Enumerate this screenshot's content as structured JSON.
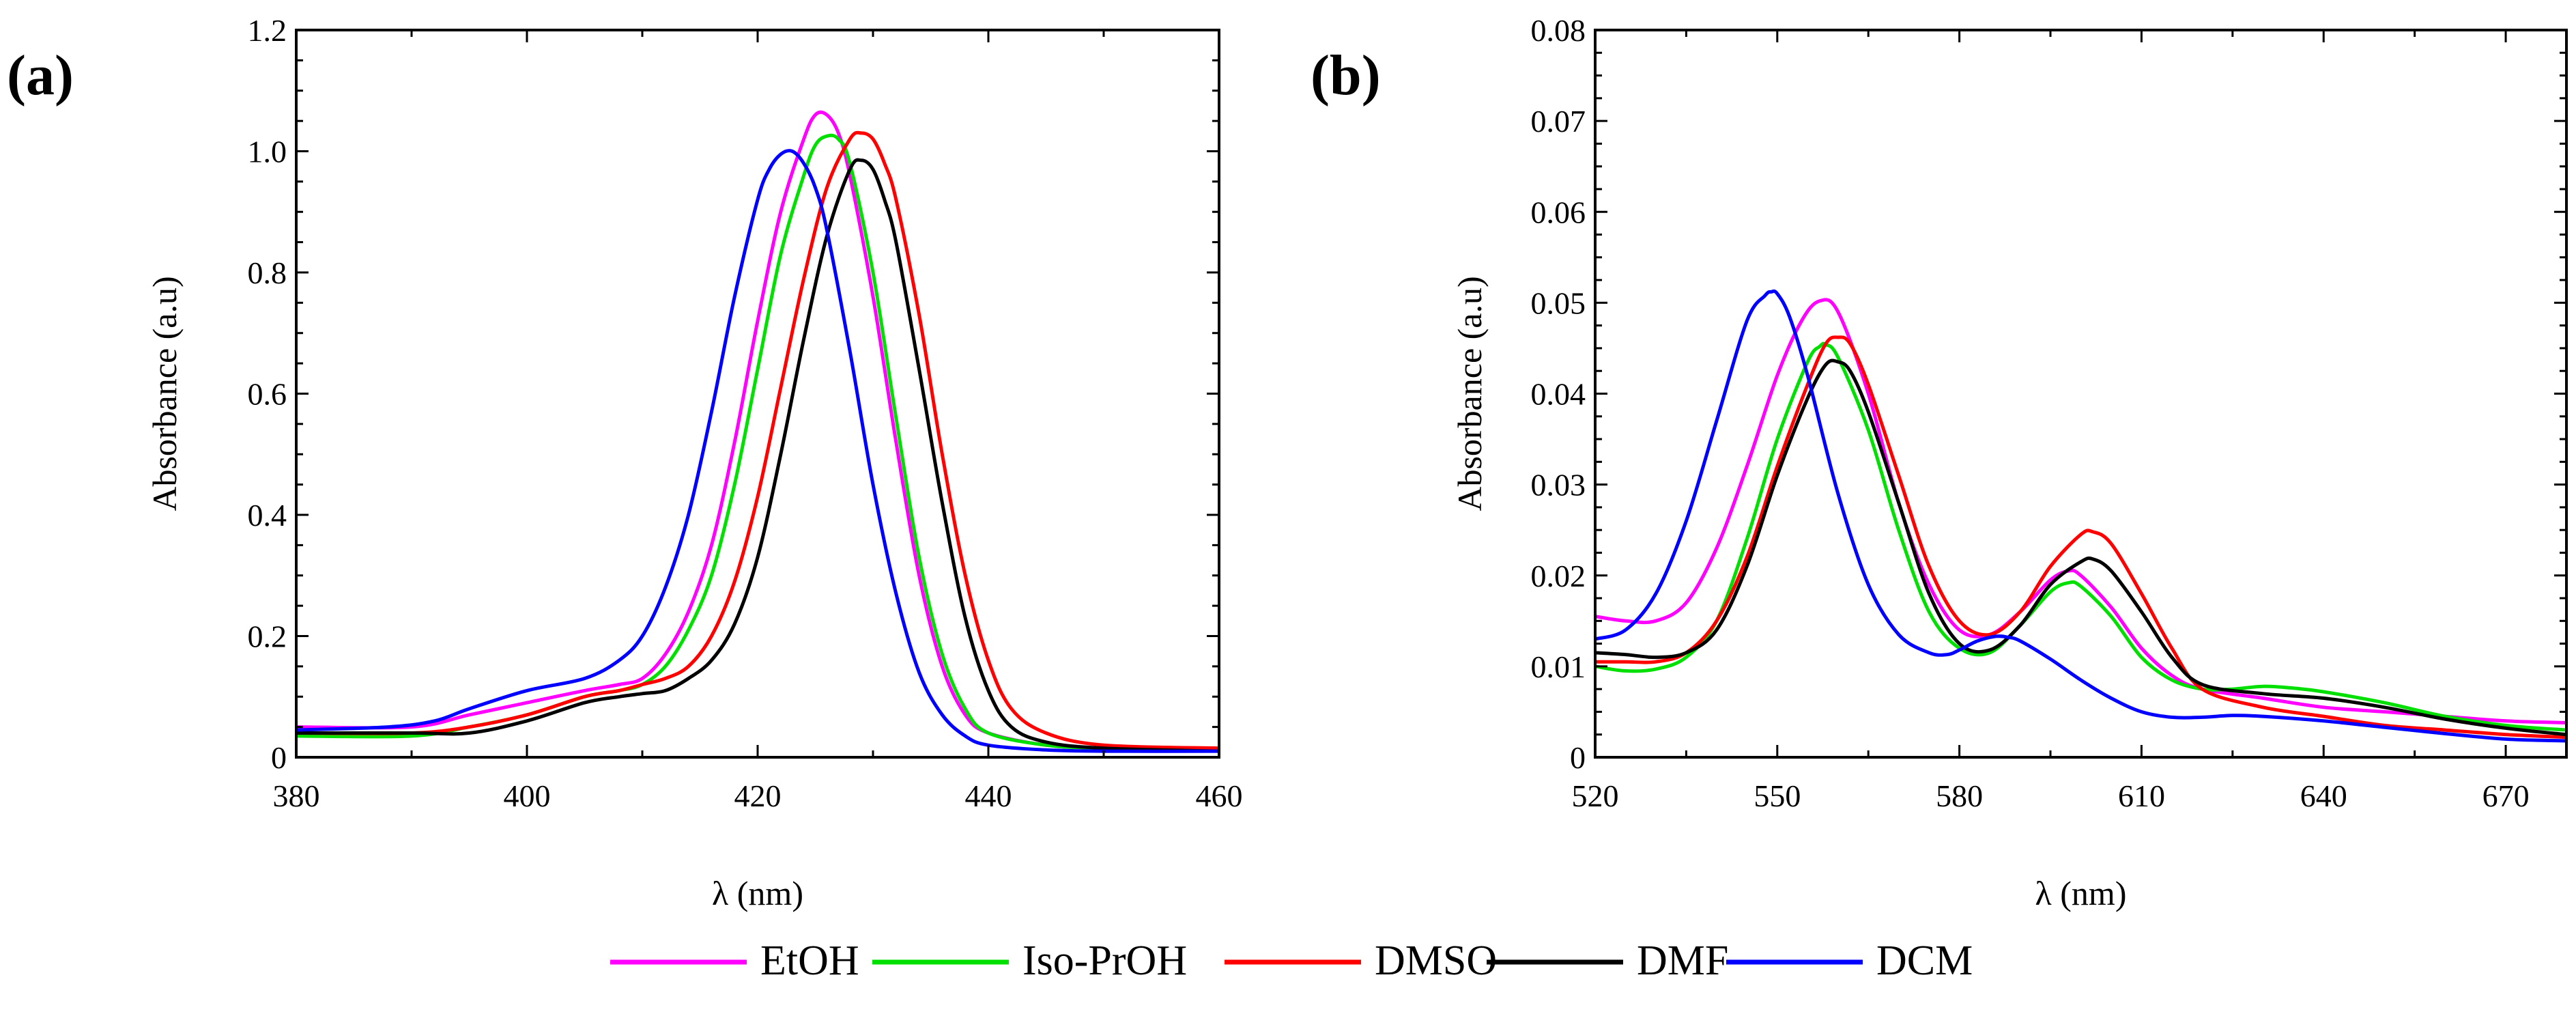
{
  "legend": [
    {
      "label": "EtOH",
      "color": "#ff00ff"
    },
    {
      "label": "Iso-PrOH",
      "color": "#00e000"
    },
    {
      "label": "DMSO",
      "color": "#ff0000"
    },
    {
      "label": "DMF",
      "color": "#000000"
    },
    {
      "label": "DCM",
      "color": "#0000ff"
    }
  ],
  "chart_data": [
    {
      "type": "line",
      "panel_label": "a",
      "title": "",
      "xlabel": "λ (nm)",
      "ylabel": "Absorbance (a.u)",
      "xlim": [
        380,
        460
      ],
      "ylim": [
        0,
        1.2
      ],
      "xticks": [
        380,
        400,
        420,
        440,
        460
      ],
      "yticks": [
        0,
        0.2,
        0.4,
        0.6,
        0.8,
        1.0,
        1.2
      ],
      "xtick_labels": [
        "380",
        "400",
        "420",
        "440",
        "460"
      ],
      "ytick_labels": [
        "0",
        "0.2",
        "0.4",
        "0.6",
        "0.8",
        "1.0",
        "1.2"
      ],
      "grid": false,
      "series": [
        {
          "name": "EtOH",
          "color": "#ff00ff",
          "x": [
            380,
            390,
            395,
            400,
            405,
            408,
            410,
            412,
            414,
            416,
            418,
            420,
            422,
            424,
            425,
            426,
            427,
            428,
            430,
            432,
            434,
            436,
            438,
            440,
            445,
            450,
            460
          ],
          "y": [
            0.05,
            0.05,
            0.07,
            0.09,
            0.11,
            0.12,
            0.13,
            0.17,
            0.24,
            0.35,
            0.52,
            0.72,
            0.9,
            1.02,
            1.06,
            1.06,
            1.03,
            0.96,
            0.76,
            0.52,
            0.3,
            0.15,
            0.07,
            0.04,
            0.02,
            0.015,
            0.01
          ]
        },
        {
          "name": "Iso-PrOH",
          "color": "#00e000",
          "x": [
            380,
            390,
            395,
            400,
            405,
            408,
            410,
            412,
            414,
            416,
            418,
            420,
            422,
            424,
            425,
            426,
            427,
            428,
            430,
            432,
            434,
            436,
            438,
            440,
            445,
            450,
            460
          ],
          "y": [
            0.035,
            0.035,
            0.05,
            0.07,
            0.1,
            0.11,
            0.12,
            0.15,
            0.21,
            0.3,
            0.45,
            0.64,
            0.83,
            0.96,
            1.01,
            1.025,
            1.02,
            0.98,
            0.8,
            0.56,
            0.33,
            0.17,
            0.08,
            0.04,
            0.02,
            0.015,
            0.01
          ]
        },
        {
          "name": "DMSO",
          "color": "#ff0000",
          "x": [
            380,
            390,
            395,
            400,
            405,
            408,
            410,
            412,
            414,
            416,
            418,
            420,
            422,
            424,
            426,
            428,
            429,
            430,
            431,
            432,
            434,
            436,
            438,
            440,
            442,
            445,
            450,
            460
          ],
          "y": [
            0.04,
            0.04,
            0.05,
            0.07,
            0.1,
            0.11,
            0.12,
            0.13,
            0.15,
            0.2,
            0.29,
            0.43,
            0.61,
            0.79,
            0.94,
            1.02,
            1.03,
            1.02,
            0.98,
            0.92,
            0.73,
            0.5,
            0.3,
            0.16,
            0.08,
            0.04,
            0.02,
            0.015
          ]
        },
        {
          "name": "DMF",
          "color": "#000000",
          "x": [
            380,
            390,
            395,
            400,
            405,
            408,
            410,
            412,
            414,
            416,
            418,
            420,
            422,
            424,
            426,
            428,
            429,
            430,
            431,
            432,
            434,
            436,
            438,
            440,
            442,
            445,
            450,
            460
          ],
          "y": [
            0.04,
            0.04,
            0.04,
            0.06,
            0.09,
            0.1,
            0.105,
            0.11,
            0.13,
            0.16,
            0.22,
            0.33,
            0.5,
            0.69,
            0.86,
            0.97,
            0.985,
            0.97,
            0.92,
            0.85,
            0.64,
            0.42,
            0.23,
            0.11,
            0.05,
            0.025,
            0.015,
            0.01
          ]
        },
        {
          "name": "DCM",
          "color": "#0000ff",
          "x": [
            380,
            388,
            392,
            395,
            400,
            405,
            408,
            410,
            412,
            414,
            416,
            418,
            420,
            421,
            422,
            423,
            424,
            425,
            426,
            428,
            430,
            432,
            434,
            436,
            438,
            440,
            445,
            450,
            460
          ],
          "y": [
            0.045,
            0.05,
            0.06,
            0.08,
            0.11,
            0.13,
            0.16,
            0.2,
            0.28,
            0.4,
            0.57,
            0.76,
            0.92,
            0.97,
            0.995,
            1.0,
            0.98,
            0.94,
            0.87,
            0.67,
            0.45,
            0.27,
            0.14,
            0.07,
            0.035,
            0.02,
            0.012,
            0.01,
            0.01
          ]
        }
      ]
    },
    {
      "type": "line",
      "panel_label": "b",
      "title": "",
      "xlabel": "λ (nm)",
      "ylabel": "Absorbance (a.u)",
      "xlim": [
        520,
        680
      ],
      "ylim": [
        0,
        0.08
      ],
      "xticks": [
        520,
        550,
        580,
        610,
        640,
        670
      ],
      "yticks": [
        0,
        0.01,
        0.02,
        0.03,
        0.04,
        0.05,
        0.06,
        0.07,
        0.08
      ],
      "xtick_labels": [
        "520",
        "550",
        "580",
        "610",
        "640",
        "670"
      ],
      "ytick_labels": [
        "0",
        "0.01",
        "0.02",
        "0.03",
        "0.04",
        "0.05",
        "0.06",
        "0.07",
        "0.08"
      ],
      "grid": false,
      "series": [
        {
          "name": "EtOH",
          "color": "#ff00ff",
          "x": [
            520,
            525,
            530,
            535,
            540,
            545,
            550,
            554,
            557,
            560,
            565,
            570,
            575,
            580,
            585,
            590,
            595,
            598,
            600,
            605,
            610,
            615,
            620,
            630,
            640,
            650,
            660,
            670,
            680
          ],
          "y": [
            0.0155,
            0.015,
            0.015,
            0.017,
            0.023,
            0.032,
            0.042,
            0.048,
            0.0502,
            0.049,
            0.04,
            0.028,
            0.019,
            0.014,
            0.0135,
            0.016,
            0.0195,
            0.0205,
            0.02,
            0.0165,
            0.012,
            0.009,
            0.0075,
            0.0065,
            0.0055,
            0.005,
            0.0045,
            0.004,
            0.0038
          ]
        },
        {
          "name": "Iso-PrOH",
          "color": "#00e000",
          "x": [
            520,
            525,
            530,
            535,
            540,
            545,
            550,
            555,
            557,
            558,
            560,
            565,
            570,
            575,
            580,
            585,
            590,
            595,
            598,
            600,
            605,
            610,
            615,
            620,
            625,
            630,
            635,
            640,
            650,
            660,
            670,
            680
          ],
          "y": [
            0.01,
            0.0095,
            0.0097,
            0.011,
            0.015,
            0.024,
            0.035,
            0.0435,
            0.0452,
            0.0454,
            0.044,
            0.036,
            0.025,
            0.016,
            0.012,
            0.0115,
            0.0145,
            0.0182,
            0.0192,
            0.0188,
            0.0155,
            0.011,
            0.0085,
            0.0075,
            0.0075,
            0.0078,
            0.0076,
            0.0072,
            0.006,
            0.0045,
            0.0035,
            0.003
          ]
        },
        {
          "name": "DMSO",
          "color": "#ff0000",
          "x": [
            520,
            525,
            530,
            535,
            540,
            545,
            550,
            555,
            558,
            560,
            562,
            565,
            570,
            575,
            580,
            585,
            590,
            595,
            600,
            602,
            605,
            610,
            615,
            620,
            630,
            640,
            650,
            660,
            670,
            680
          ],
          "y": [
            0.0105,
            0.0105,
            0.0105,
            0.0115,
            0.015,
            0.022,
            0.032,
            0.041,
            0.0455,
            0.0462,
            0.0455,
            0.041,
            0.031,
            0.021,
            0.015,
            0.0135,
            0.016,
            0.021,
            0.0245,
            0.0248,
            0.0235,
            0.018,
            0.012,
            0.0075,
            0.0055,
            0.0045,
            0.0035,
            0.003,
            0.0025,
            0.0022
          ]
        },
        {
          "name": "DMF",
          "color": "#000000",
          "x": [
            520,
            525,
            530,
            535,
            540,
            545,
            550,
            555,
            558,
            560,
            562,
            565,
            570,
            575,
            580,
            585,
            590,
            595,
            600,
            602,
            605,
            610,
            615,
            620,
            630,
            640,
            650,
            660,
            670,
            680
          ],
          "y": [
            0.0115,
            0.0113,
            0.011,
            0.0115,
            0.014,
            0.021,
            0.031,
            0.0395,
            0.0432,
            0.0435,
            0.0425,
            0.038,
            0.028,
            0.018,
            0.0125,
            0.0118,
            0.0145,
            0.019,
            0.0215,
            0.0218,
            0.0205,
            0.016,
            0.011,
            0.008,
            0.007,
            0.0065,
            0.0055,
            0.0042,
            0.0032,
            0.0025
          ]
        },
        {
          "name": "DCM",
          "color": "#0000ff",
          "x": [
            520,
            525,
            530,
            535,
            540,
            545,
            548,
            549,
            550,
            552,
            555,
            560,
            565,
            570,
            575,
            578,
            580,
            583,
            586,
            588,
            590,
            595,
            600,
            605,
            610,
            615,
            620,
            625,
            630,
            640,
            650,
            660,
            670,
            680
          ],
          "y": [
            0.013,
            0.014,
            0.018,
            0.026,
            0.037,
            0.048,
            0.0508,
            0.0512,
            0.051,
            0.0485,
            0.042,
            0.029,
            0.019,
            0.0135,
            0.0115,
            0.0113,
            0.0118,
            0.0128,
            0.0133,
            0.0132,
            0.0128,
            0.0108,
            0.0085,
            0.0065,
            0.005,
            0.0044,
            0.0044,
            0.0046,
            0.0045,
            0.004,
            0.0033,
            0.0026,
            0.002,
            0.0018
          ]
        }
      ]
    }
  ]
}
